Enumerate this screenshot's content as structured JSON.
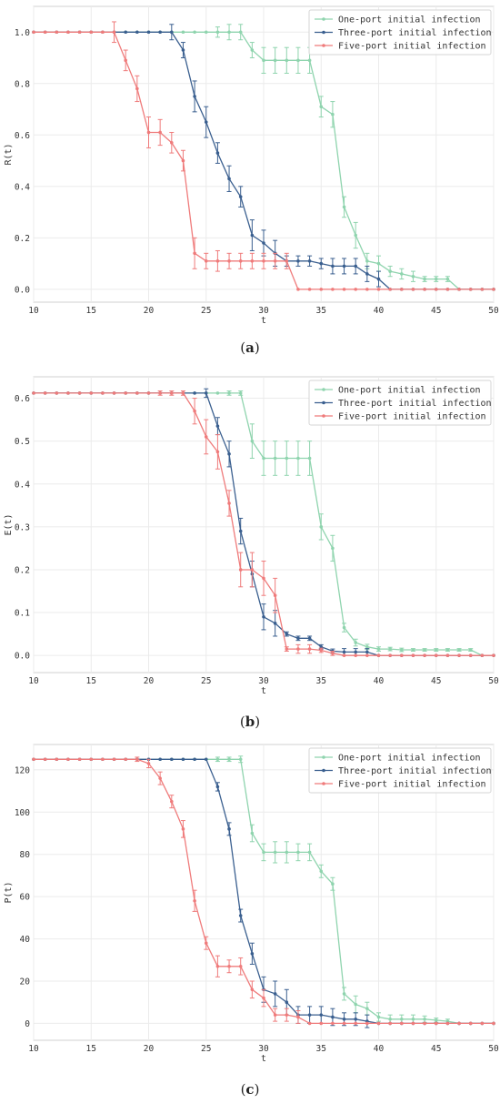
{
  "captions": [
    "a",
    "b",
    "c"
  ],
  "chart_data": [
    {
      "type": "line",
      "xlabel": "t",
      "ylabel": "R(t)",
      "xlim": [
        10,
        50
      ],
      "ylim": [
        -0.05,
        1.1
      ],
      "xticks": [
        10,
        15,
        20,
        25,
        30,
        35,
        40,
        45,
        50
      ],
      "yticks": [
        0.0,
        0.2,
        0.4,
        0.6,
        0.8,
        1.0
      ],
      "ytick_labels": [
        "0.0",
        "0.2",
        "0.4",
        "0.6",
        "0.8",
        "1.0"
      ],
      "xtick_labels": [
        "10",
        "15",
        "20",
        "25",
        "30",
        "35",
        "40",
        "45",
        "50"
      ],
      "grid": true,
      "legend_position": "top-right",
      "x": [
        10,
        11,
        12,
        13,
        14,
        15,
        16,
        17,
        18,
        19,
        20,
        21,
        22,
        23,
        24,
        25,
        26,
        27,
        28,
        29,
        30,
        31,
        32,
        33,
        34,
        35,
        36,
        37,
        38,
        39,
        40,
        41,
        42,
        43,
        44,
        45,
        46,
        47,
        48,
        49,
        50
      ],
      "series": [
        {
          "name": "One-port initial infection",
          "color": "#8fd4ae",
          "values": [
            1,
            1,
            1,
            1,
            1,
            1,
            1,
            1,
            1,
            1,
            1,
            1,
            1,
            1,
            1,
            1,
            1,
            1,
            1,
            0.93,
            0.89,
            0.89,
            0.89,
            0.89,
            0.89,
            0.71,
            0.68,
            0.32,
            0.21,
            0.11,
            0.1,
            0.07,
            0.06,
            0.05,
            0.04,
            0.04,
            0.04,
            0,
            0,
            0,
            0
          ],
          "errors": [
            0,
            0,
            0,
            0,
            0,
            0,
            0,
            0,
            0,
            0,
            0,
            0,
            0,
            0,
            0,
            0,
            0.02,
            0.03,
            0.03,
            0.03,
            0.05,
            0.05,
            0.05,
            0.05,
            0.05,
            0.04,
            0.05,
            0.04,
            0.05,
            0.03,
            0.03,
            0.02,
            0.02,
            0.02,
            0.01,
            0.01,
            0.01,
            0,
            0,
            0,
            0
          ]
        },
        {
          "name": "Three-port initial infection",
          "color": "#3a5f8f",
          "values": [
            1,
            1,
            1,
            1,
            1,
            1,
            1,
            1,
            1,
            1,
            1,
            1,
            1,
            0.93,
            0.75,
            0.65,
            0.53,
            0.43,
            0.36,
            0.21,
            0.18,
            0.14,
            0.11,
            0.11,
            0.11,
            0.1,
            0.09,
            0.09,
            0.09,
            0.06,
            0.04,
            0,
            0,
            0,
            0,
            0,
            0,
            0,
            0,
            0,
            0
          ],
          "errors": [
            0,
            0,
            0,
            0,
            0,
            0,
            0,
            0,
            0,
            0,
            0,
            0,
            0.03,
            0.03,
            0.06,
            0.06,
            0.04,
            0.05,
            0.04,
            0.06,
            0.05,
            0.05,
            0.02,
            0.02,
            0.02,
            0.02,
            0.03,
            0.03,
            0.03,
            0.03,
            0.03,
            0,
            0,
            0,
            0,
            0,
            0,
            0,
            0,
            0,
            0
          ]
        },
        {
          "name": "Five-port initial infection",
          "color": "#ef7b7b",
          "values": [
            1,
            1,
            1,
            1,
            1,
            1,
            1,
            1,
            0.89,
            0.78,
            0.61,
            0.61,
            0.57,
            0.5,
            0.14,
            0.11,
            0.11,
            0.11,
            0.11,
            0.11,
            0.11,
            0.11,
            0.11,
            0,
            0,
            0,
            0,
            0,
            0,
            0,
            0,
            0,
            0,
            0,
            0,
            0,
            0,
            0,
            0,
            0,
            0
          ],
          "errors": [
            0,
            0,
            0,
            0,
            0,
            0,
            0,
            0.04,
            0.04,
            0.05,
            0.06,
            0.05,
            0.04,
            0.04,
            0.06,
            0.03,
            0.04,
            0.03,
            0.03,
            0.03,
            0.03,
            0.03,
            0.03,
            0,
            0,
            0,
            0,
            0,
            0,
            0,
            0,
            0,
            0,
            0,
            0,
            0,
            0,
            0,
            0,
            0,
            0
          ]
        }
      ]
    },
    {
      "type": "line",
      "xlabel": "t",
      "ylabel": "E(t)",
      "xlim": [
        10,
        50
      ],
      "ylim": [
        -0.04,
        0.65
      ],
      "xticks": [
        10,
        15,
        20,
        25,
        30,
        35,
        40,
        45,
        50
      ],
      "yticks": [
        0.0,
        0.1,
        0.2,
        0.3,
        0.4,
        0.5,
        0.6
      ],
      "ytick_labels": [
        "0.0",
        "0.1",
        "0.2",
        "0.3",
        "0.4",
        "0.5",
        "0.6"
      ],
      "xtick_labels": [
        "10",
        "15",
        "20",
        "25",
        "30",
        "35",
        "40",
        "45",
        "50"
      ],
      "grid": true,
      "legend_position": "top-right",
      "x": [
        10,
        11,
        12,
        13,
        14,
        15,
        16,
        17,
        18,
        19,
        20,
        21,
        22,
        23,
        24,
        25,
        26,
        27,
        28,
        29,
        30,
        31,
        32,
        33,
        34,
        35,
        36,
        37,
        38,
        39,
        40,
        41,
        42,
        43,
        44,
        45,
        46,
        47,
        48,
        49,
        50
      ],
      "series": [
        {
          "name": "One-port initial infection",
          "color": "#8fd4ae",
          "values": [
            0.612,
            0.612,
            0.612,
            0.612,
            0.612,
            0.612,
            0.612,
            0.612,
            0.612,
            0.612,
            0.612,
            0.612,
            0.612,
            0.612,
            0.612,
            0.612,
            0.612,
            0.612,
            0.612,
            0.5,
            0.46,
            0.46,
            0.46,
            0.46,
            0.46,
            0.3,
            0.25,
            0.065,
            0.03,
            0.02,
            0.015,
            0.015,
            0.013,
            0.013,
            0.013,
            0.013,
            0.013,
            0.013,
            0.013,
            0,
            0
          ],
          "errors": [
            0,
            0,
            0,
            0,
            0,
            0,
            0,
            0,
            0,
            0,
            0,
            0,
            0,
            0,
            0,
            0,
            0,
            0.005,
            0.005,
            0.04,
            0.04,
            0.04,
            0.04,
            0.04,
            0.04,
            0.03,
            0.03,
            0.01,
            0.008,
            0.006,
            0.005,
            0.004,
            0.004,
            0.003,
            0.003,
            0.003,
            0.003,
            0.003,
            0.003,
            0,
            0
          ]
        },
        {
          "name": "Three-port initial infection",
          "color": "#3a5f8f",
          "values": [
            0.612,
            0.612,
            0.612,
            0.612,
            0.612,
            0.612,
            0.612,
            0.612,
            0.612,
            0.612,
            0.612,
            0.612,
            0.612,
            0.612,
            0.612,
            0.612,
            0.535,
            0.47,
            0.29,
            0.19,
            0.09,
            0.075,
            0.05,
            0.04,
            0.04,
            0.02,
            0.01,
            0.008,
            0.008,
            0.008,
            0,
            0,
            0,
            0,
            0,
            0,
            0,
            0,
            0,
            0,
            0
          ],
          "errors": [
            0,
            0,
            0,
            0,
            0,
            0,
            0,
            0,
            0,
            0,
            0,
            0,
            0,
            0,
            0,
            0.01,
            0.02,
            0.03,
            0.03,
            0.03,
            0.03,
            0.03,
            0.005,
            0.005,
            0.005,
            0.005,
            0.005,
            0.008,
            0.008,
            0.008,
            0,
            0,
            0,
            0,
            0,
            0,
            0,
            0,
            0,
            0,
            0
          ]
        },
        {
          "name": "Five-port initial infection",
          "color": "#ef7b7b",
          "values": [
            0.612,
            0.612,
            0.612,
            0.612,
            0.612,
            0.612,
            0.612,
            0.612,
            0.612,
            0.612,
            0.612,
            0.612,
            0.612,
            0.612,
            0.57,
            0.51,
            0.475,
            0.355,
            0.2,
            0.2,
            0.18,
            0.14,
            0.015,
            0.015,
            0.015,
            0.012,
            0.005,
            0,
            0,
            0,
            0,
            0,
            0,
            0,
            0,
            0,
            0,
            0,
            0,
            0,
            0
          ],
          "errors": [
            0,
            0,
            0,
            0,
            0,
            0,
            0,
            0,
            0,
            0,
            0,
            0.005,
            0.005,
            0.005,
            0.03,
            0.04,
            0.04,
            0.03,
            0.04,
            0.04,
            0.04,
            0.04,
            0.005,
            0.01,
            0.01,
            0.005,
            0.005,
            0,
            0,
            0,
            0,
            0,
            0,
            0,
            0,
            0,
            0,
            0,
            0,
            0,
            0
          ]
        }
      ]
    },
    {
      "type": "line",
      "xlabel": "t",
      "ylabel": "P(t)",
      "xlim": [
        10,
        50
      ],
      "ylim": [
        -8,
        132
      ],
      "xticks": [
        10,
        15,
        20,
        25,
        30,
        35,
        40,
        45,
        50
      ],
      "yticks": [
        0,
        20,
        40,
        60,
        80,
        100,
        120
      ],
      "ytick_labels": [
        "0",
        "20",
        "40",
        "60",
        "80",
        "100",
        "120"
      ],
      "xtick_labels": [
        "10",
        "15",
        "20",
        "25",
        "30",
        "35",
        "40",
        "45",
        "50"
      ],
      "grid": true,
      "legend_position": "top-right",
      "x": [
        10,
        11,
        12,
        13,
        14,
        15,
        16,
        17,
        18,
        19,
        20,
        21,
        22,
        23,
        24,
        25,
        26,
        27,
        28,
        29,
        30,
        31,
        32,
        33,
        34,
        35,
        36,
        37,
        38,
        39,
        40,
        41,
        42,
        43,
        44,
        45,
        46,
        47,
        48,
        49,
        50
      ],
      "series": [
        {
          "name": "One-port initial infection",
          "color": "#8fd4ae",
          "values": [
            125,
            125,
            125,
            125,
            125,
            125,
            125,
            125,
            125,
            125,
            125,
            125,
            125,
            125,
            125,
            125,
            125,
            125,
            125,
            90,
            81,
            81,
            81,
            81,
            81,
            72,
            66,
            14,
            9,
            7,
            3,
            2,
            2,
            2,
            2,
            1.5,
            1,
            0,
            0,
            0,
            0
          ],
          "errors": [
            0,
            0,
            0,
            0,
            0,
            0,
            0,
            0,
            0,
            0,
            0,
            0,
            0,
            0,
            0,
            0,
            1,
            1,
            1.5,
            4,
            4,
            5,
            5,
            4,
            4,
            3,
            3,
            3,
            4,
            3,
            2,
            2,
            2,
            2,
            1.5,
            1,
            1,
            0,
            0,
            0,
            0
          ]
        },
        {
          "name": "Three-port initial infection",
          "color": "#3a5f8f",
          "values": [
            125,
            125,
            125,
            125,
            125,
            125,
            125,
            125,
            125,
            125,
            125,
            125,
            125,
            125,
            125,
            125,
            112,
            92,
            51,
            33,
            16,
            14,
            10,
            4,
            4,
            4,
            3,
            2,
            2,
            1,
            0,
            0,
            0,
            0,
            0,
            0,
            0,
            0,
            0,
            0,
            0
          ],
          "errors": [
            0,
            0,
            0,
            0,
            0,
            0,
            0,
            0,
            0,
            0,
            0,
            0,
            0,
            0,
            0,
            0,
            2,
            3,
            3,
            5,
            6,
            6,
            6,
            4,
            4,
            4,
            4,
            3,
            3,
            3,
            0,
            0,
            0,
            0,
            0,
            0,
            0,
            0,
            0,
            0,
            0
          ]
        },
        {
          "name": "Five-port initial infection",
          "color": "#ef7b7b",
          "values": [
            125,
            125,
            125,
            125,
            125,
            125,
            125,
            125,
            125,
            125,
            123,
            116,
            105,
            92,
            58,
            38,
            27,
            27,
            27,
            16,
            12,
            4,
            4,
            3,
            0,
            0,
            0,
            0,
            0,
            0,
            0,
            0,
            0,
            0,
            0,
            0,
            0,
            0,
            0,
            0,
            0
          ],
          "errors": [
            0,
            0,
            0,
            0,
            0,
            0,
            0,
            0,
            0,
            1,
            2,
            3,
            3,
            4,
            5,
            3,
            5,
            3,
            4,
            4,
            4,
            3,
            3,
            3,
            0,
            0,
            0,
            0,
            0,
            0,
            0,
            0,
            0,
            0,
            0,
            0,
            0,
            0,
            0,
            0,
            0
          ]
        }
      ]
    }
  ]
}
